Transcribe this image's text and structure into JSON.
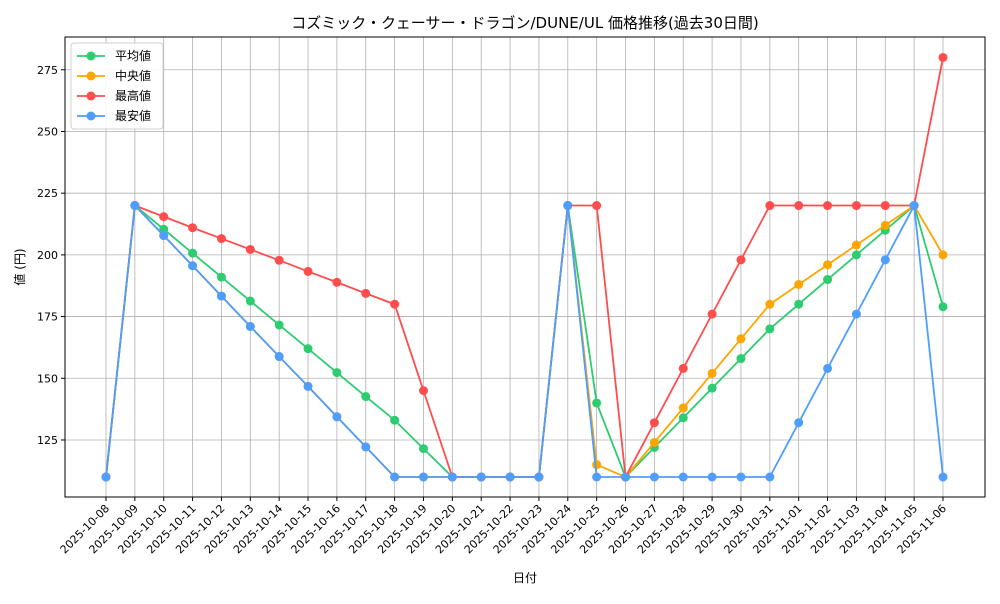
{
  "chart_data": {
    "type": "line",
    "title": "コズミック・クェーサー・ドラゴン/DUNE/UL 価格推移(過去30日間)",
    "xlabel": "日付",
    "ylabel": "値 (円)",
    "ylim": [
      102,
      288
    ],
    "yticks": [
      125,
      150,
      175,
      200,
      225,
      250,
      275
    ],
    "grid": true,
    "legend_position": "top-left",
    "x": [
      "2025-10-08",
      "2025-10-09",
      "2025-10-10",
      "2025-10-11",
      "2025-10-12",
      "2025-10-13",
      "2025-10-14",
      "2025-10-15",
      "2025-10-16",
      "2025-10-17",
      "2025-10-18",
      "2025-10-19",
      "2025-10-20",
      "2025-10-21",
      "2025-10-22",
      "2025-10-23",
      "2025-10-24",
      "2025-10-25",
      "2025-10-26",
      "2025-10-27",
      "2025-10-28",
      "2025-10-29",
      "2025-10-30",
      "2025-10-31",
      "2025-11-01",
      "2025-11-02",
      "2025-11-03",
      "2025-11-04",
      "2025-11-05",
      "2025-11-06"
    ],
    "series": [
      {
        "name": "平均値",
        "color": "#2ecc71",
        "values": [
          110,
          220,
          210.4,
          200.7,
          191,
          181.3,
          171.6,
          162,
          152.3,
          142.6,
          133,
          121.5,
          110,
          110,
          110,
          110,
          220,
          140,
          110,
          122,
          134,
          146,
          158,
          170,
          180,
          190,
          200,
          210,
          220,
          179
        ]
      },
      {
        "name": "中央値",
        "color": "#ffa500",
        "values": [
          110,
          220,
          207.8,
          195.6,
          183.3,
          171,
          158.8,
          146.7,
          134.4,
          122.2,
          110,
          110,
          110,
          110,
          110,
          110,
          220,
          115,
          110,
          124,
          138,
          152,
          166,
          180,
          188,
          196,
          204,
          212,
          220,
          200
        ]
      },
      {
        "name": "最高値",
        "color": "#ff4d4d",
        "values": [
          110,
          220,
          215.5,
          211,
          206.6,
          202.2,
          197.8,
          193.3,
          188.9,
          184.4,
          180,
          145,
          110,
          110,
          110,
          110,
          220,
          220,
          110,
          132,
          154,
          176,
          198,
          220,
          220,
          220,
          220,
          220,
          220,
          280
        ]
      },
      {
        "name": "最安値",
        "color": "#4d9eff",
        "values": [
          110,
          220,
          207.8,
          195.6,
          183.3,
          171,
          158.8,
          146.7,
          134.4,
          122.2,
          110,
          110,
          110,
          110,
          110,
          110,
          220,
          110,
          110,
          110,
          110,
          110,
          110,
          110,
          132,
          154,
          176,
          198,
          220,
          110
        ]
      }
    ]
  }
}
